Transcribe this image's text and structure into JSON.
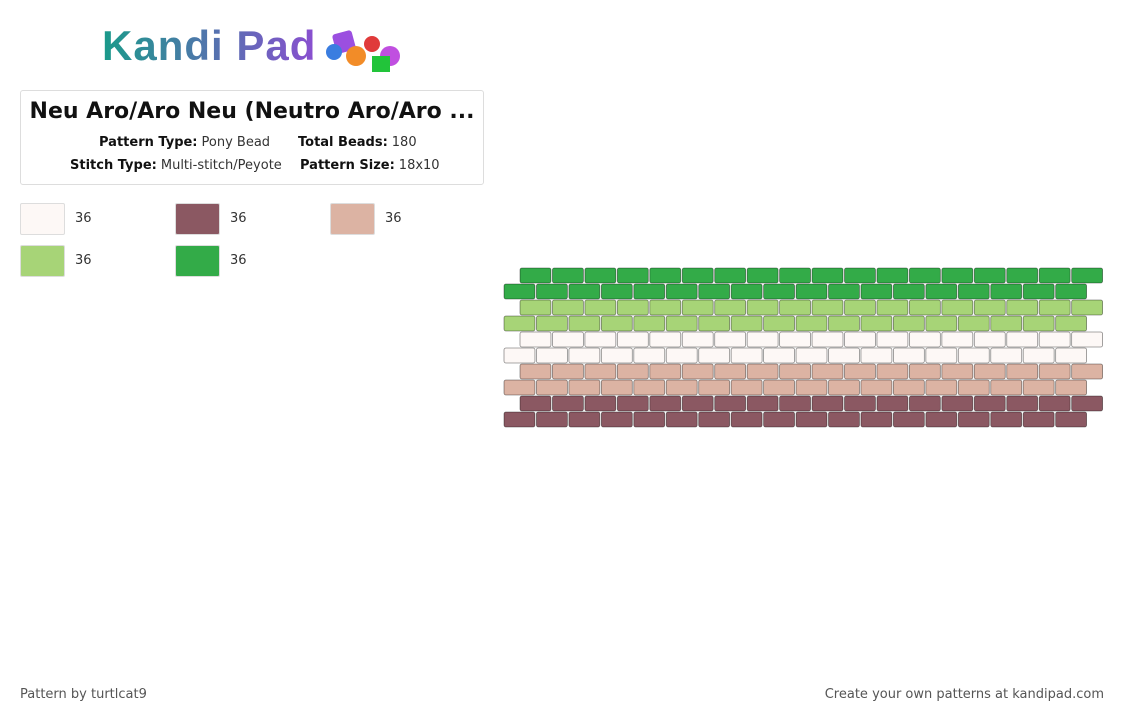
{
  "logo": {
    "text": "Kandi Pad"
  },
  "header": {
    "title": "Neu Aro/Aro Neu (Neutro Aro/Aro ...",
    "details": [
      {
        "label": "Pattern Type:",
        "value": "Pony Bead"
      },
      {
        "label": "Total Beads:",
        "value": 180
      },
      {
        "label": "Stitch Type:",
        "value": "Multi-stitch/Peyote"
      },
      {
        "label": "Pattern Size:",
        "value": "18x10"
      }
    ]
  },
  "palette": [
    {
      "color": "#fdf8f6",
      "count": 36
    },
    {
      "color": "#8b5862",
      "count": 36
    },
    {
      "color": "#dcb3a3",
      "count": 36
    },
    {
      "color": "#a7d477",
      "count": 36
    },
    {
      "color": "#33ab48",
      "count": 36
    }
  ],
  "pattern": {
    "row_colors": [
      4,
      4,
      3,
      3,
      0,
      0,
      2,
      2,
      1,
      1
    ]
  },
  "footer": {
    "left": "Pattern by turtlcat9",
    "right": "Create your own patterns at kandipad.com"
  }
}
